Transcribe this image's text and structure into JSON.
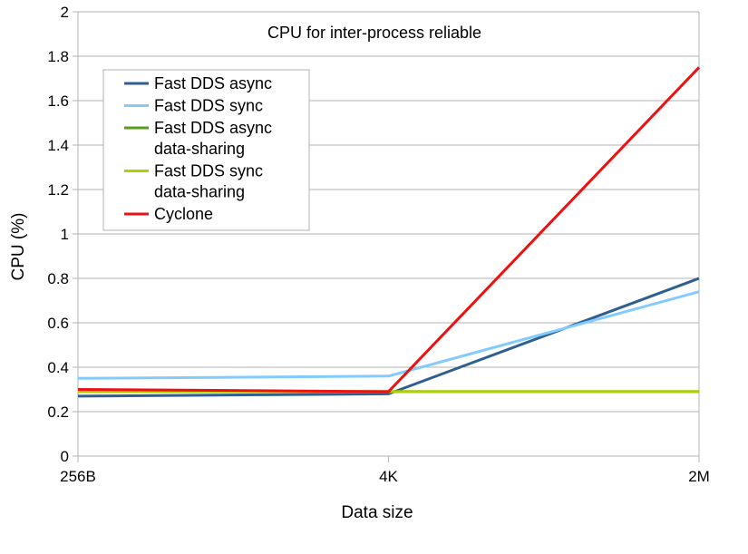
{
  "chart_data": {
    "type": "line",
    "title": "CPU for inter-process reliable",
    "xlabel": "Data size",
    "ylabel": "CPU (%)",
    "categories": [
      "256B",
      "4K",
      "2M"
    ],
    "ylim": [
      0,
      2
    ],
    "ytick_step": 0.2,
    "grid": "horizontal",
    "legend_position": "top-left",
    "series": [
      {
        "name": "Fast DDS async",
        "color": "#2e5f8e",
        "values": [
          0.27,
          0.28,
          0.8
        ]
      },
      {
        "name": "Fast DDS sync",
        "color": "#83caff",
        "values": [
          0.35,
          0.36,
          0.74
        ]
      },
      {
        "name": "Fast DDS async data-sharing",
        "color": "#579d1c",
        "values": [
          0.29,
          0.29,
          0.29
        ]
      },
      {
        "name": "Fast DDS sync data-sharing",
        "color": "#aecf00",
        "values": [
          0.29,
          0.29,
          0.29
        ]
      },
      {
        "name": "Cyclone",
        "color": "#ee1111",
        "values": [
          0.3,
          0.29,
          1.75
        ]
      }
    ]
  }
}
